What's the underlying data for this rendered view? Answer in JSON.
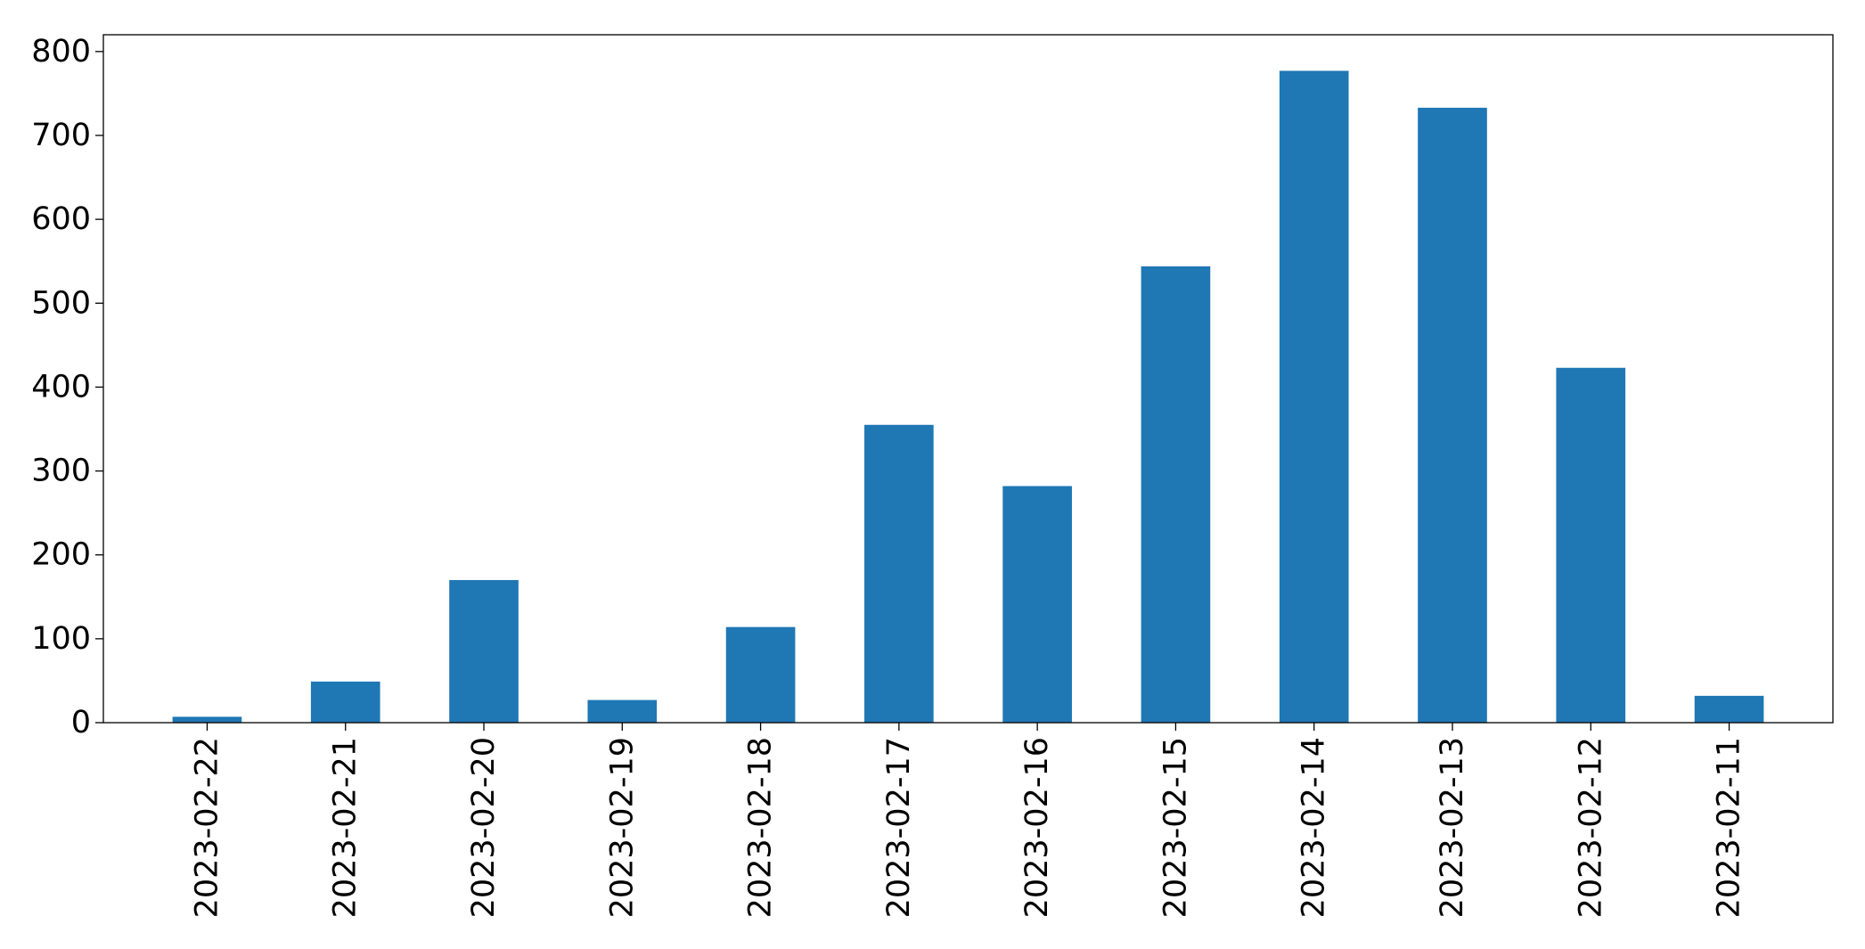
{
  "chart_data": {
    "type": "bar",
    "title": "",
    "xlabel": "",
    "ylabel": "",
    "categories": [
      "2023-02-22",
      "2023-02-21",
      "2023-02-20",
      "2023-02-19",
      "2023-02-18",
      "2023-02-17",
      "2023-02-16",
      "2023-02-15",
      "2023-02-14",
      "2023-02-13",
      "2023-02-12",
      "2023-02-11"
    ],
    "values": [
      7,
      49,
      170,
      27,
      114,
      355,
      282,
      544,
      777,
      733,
      423,
      32
    ],
    "ylim": [
      0,
      820
    ],
    "yticks": [
      0,
      100,
      200,
      300,
      400,
      500,
      600,
      700,
      800
    ],
    "bar_color": "#1f77b4",
    "grid": false,
    "legend": "none"
  }
}
